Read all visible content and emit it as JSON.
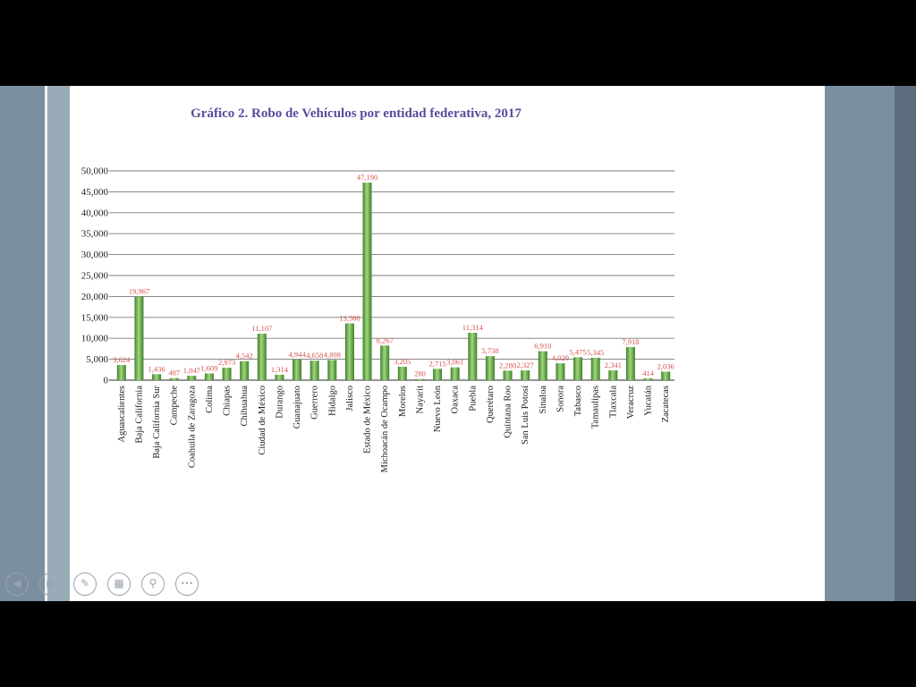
{
  "controls": {
    "prev_icon": "◀",
    "next_icon": "▶",
    "pen_icon": "✎",
    "slides_icon": "▦",
    "zoom_icon": "⚲",
    "more_icon": "•••"
  },
  "colors": {
    "title": "#5b4a9e",
    "bar": "#6ab04c",
    "bar_dark": "#3f7f2a",
    "bar_light": "#9fd77e",
    "value_label": "#d9534f",
    "axis_text": "#222222",
    "grid": "#7a7a7a"
  },
  "chart_data": {
    "type": "bar",
    "title": "Gráfico 2. Robo de Vehículos por entidad federativa, 2017",
    "xlabel": "",
    "ylabel": "",
    "ylim": [
      0,
      50000
    ],
    "grid": true,
    "legend": "none",
    "yticks": [
      "0",
      "5,000",
      "10,000",
      "15,000",
      "20,000",
      "25,000",
      "30,000",
      "35,000",
      "40,000",
      "45,000",
      "50,000"
    ],
    "categories": [
      "Aguascalientes",
      "Baja California",
      "Baja California Sur",
      "Campeche",
      "Coahuila de Zaragoza",
      "Colima",
      "Chiapas",
      "Chihuahua",
      "Ciudad de México",
      "Durango",
      "Guanajuato",
      "Guerrero",
      "Hidalgo",
      "Jalisco",
      "Estado de México",
      "Michoacán de Ocampo",
      "Morelos",
      "Nayarit",
      "Nuevo León",
      "Oaxaca",
      "Puebla",
      "Querétaro",
      "Quintana Roo",
      "San Luis Potosí",
      "Sinaloa",
      "Sonora",
      "Tabasco",
      "Tamaulipas",
      "Tlaxcala",
      "Veracruz",
      "Yucatán",
      "Zacatecas"
    ],
    "values": [
      3624,
      19967,
      1436,
      487,
      1047,
      1609,
      2973,
      4542,
      11107,
      1314,
      4944,
      4658,
      4808,
      13568,
      47190,
      8267,
      3205,
      280,
      2715,
      3061,
      11314,
      5738,
      2280,
      2327,
      6910,
      4029,
      5475,
      5345,
      2341,
      7918,
      414,
      2036
    ],
    "value_labels": [
      "3,624",
      "19,967",
      "1,436",
      "487",
      "1,047",
      "1,609",
      "2,973",
      "4,542",
      "11,107",
      "1,314",
      "4,944",
      "4,658",
      "4,808",
      "13,568",
      "47,190",
      "8,267",
      "3,205",
      "280",
      "2,715",
      "3,061",
      "11,314",
      "5,738",
      "2,280",
      "2,327",
      "6,910",
      "4,029",
      "5,475",
      "5,345",
      "2,341",
      "7,918",
      "414",
      "2,036"
    ]
  }
}
